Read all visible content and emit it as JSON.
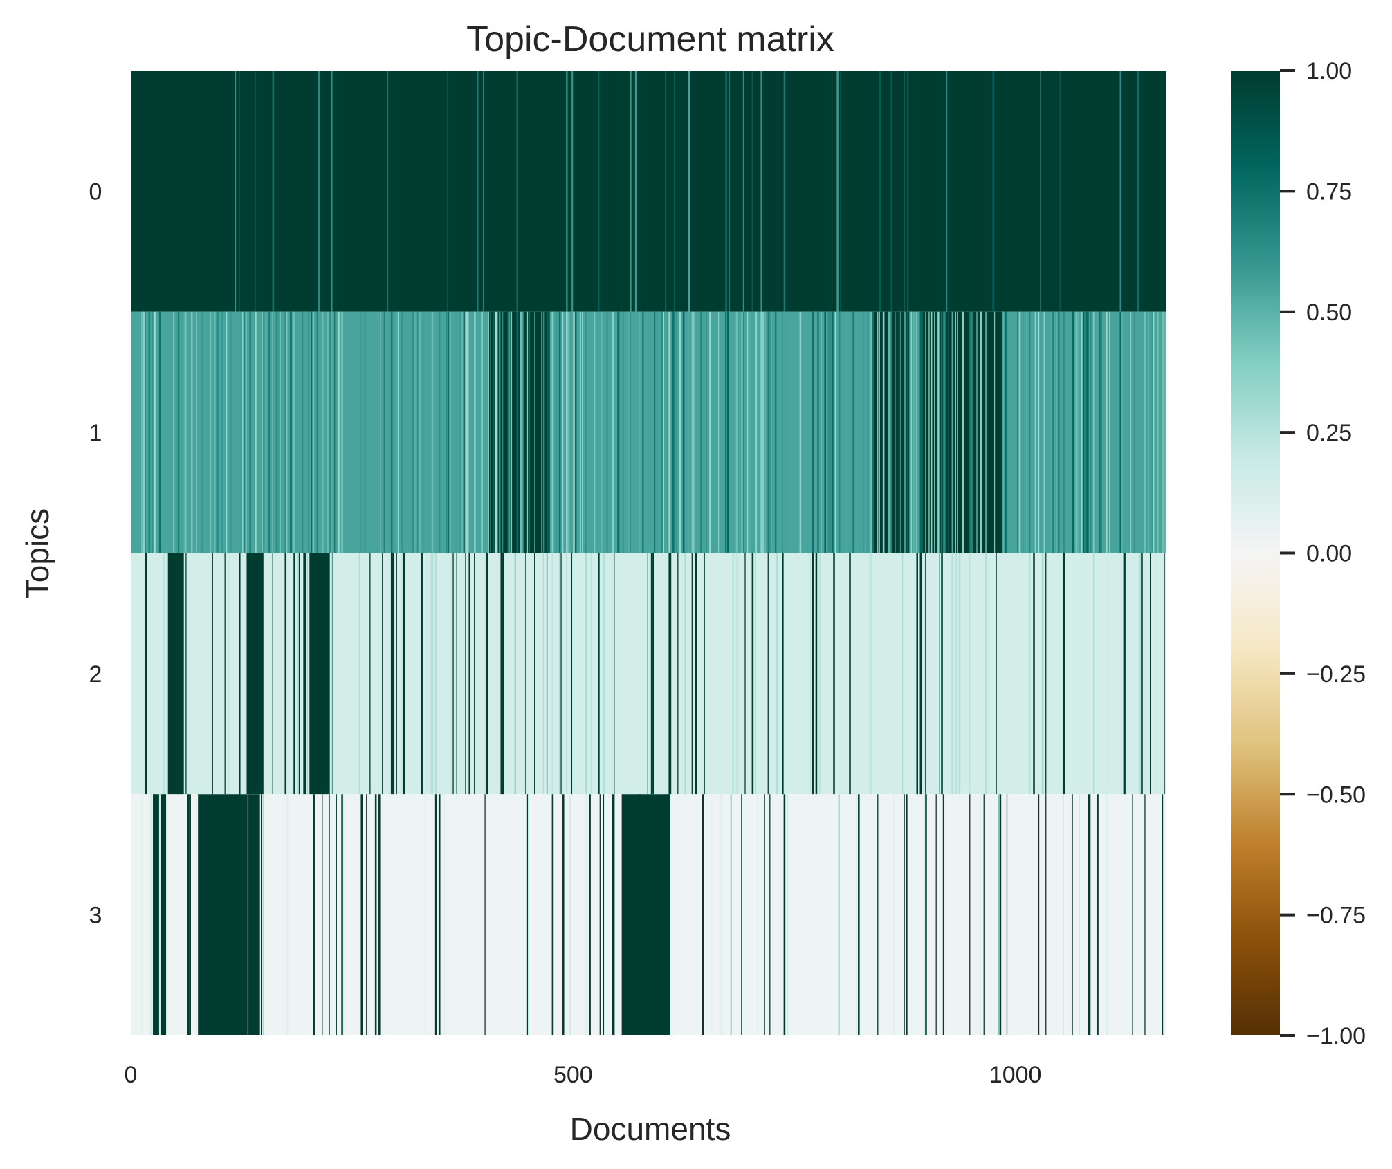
{
  "chart_data": {
    "type": "heatmap",
    "title": "Topic-Document matrix",
    "xlabel": "Documents",
    "ylabel": "Topics",
    "rows": [
      "0",
      "1",
      "2",
      "3"
    ],
    "n_documents": 1170,
    "x_ticks": [
      0,
      500,
      1000
    ],
    "x_tick_labels": [
      "0",
      "500",
      "1000"
    ],
    "colorbar": {
      "colormap": "BrBG",
      "range": [
        -1.0,
        1.0
      ],
      "ticks": [
        "1.00",
        "0.75",
        "0.50",
        "0.25",
        "0.00",
        "−0.25",
        "−0.50",
        "−0.75",
        "−1.00"
      ],
      "tick_values": [
        1.0,
        0.75,
        0.5,
        0.25,
        0.0,
        -0.25,
        -0.5,
        -0.75,
        -1.0
      ]
    },
    "grid": false,
    "legend": "colorbar-right",
    "row_summary": [
      {
        "topic": "0",
        "typical_value": 1.0,
        "secondary_value": 0.95,
        "dense_fraction": 0.93
      },
      {
        "topic": "1",
        "typical_value": 0.55,
        "secondary_value": 1.0,
        "dense_segments_documents": [
          [
            405,
            475
          ],
          [
            840,
            880
          ],
          [
            895,
            985
          ]
        ]
      },
      {
        "topic": "2",
        "typical_value": 0.15,
        "secondary_value": 1.0,
        "dense_segments_documents": [
          [
            42,
            60
          ],
          [
            130,
            150
          ],
          [
            195,
            225
          ]
        ]
      },
      {
        "topic": "3",
        "typical_value": 0.03,
        "secondary_value": 1.0,
        "dense_segments_documents": [
          [
            25,
            40
          ],
          [
            75,
            150
          ],
          [
            555,
            610
          ]
        ]
      }
    ]
  }
}
